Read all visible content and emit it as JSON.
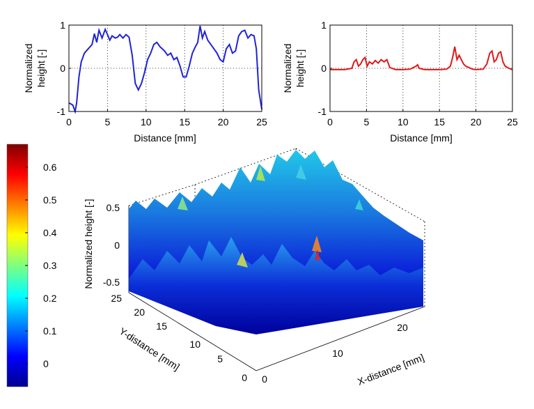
{
  "chart_data": [
    {
      "type": "line",
      "xlabel": "Distance [mm]",
      "ylabel": "Normalized height [-]",
      "xlim": [
        0,
        25
      ],
      "ylim": [
        -1,
        1
      ],
      "xticks": [
        "0",
        "5",
        "10",
        "15",
        "20",
        "25"
      ],
      "yticks": [
        "-1",
        "0",
        "1"
      ],
      "grid": true,
      "color": "#1f22d6",
      "series": [
        {
          "x": [
            0,
            0.5,
            0.8,
            1,
            1.3,
            1.6,
            2,
            2.5,
            3,
            3.3,
            3.6,
            3.9,
            4.3,
            4.7,
            5,
            5.3,
            5.6,
            6,
            6.3,
            6.6,
            7,
            7.4,
            7.8,
            8.2,
            8.6,
            9,
            9.4,
            9.8,
            10.2,
            10.6,
            11,
            11.4,
            11.8,
            12.1,
            12.4,
            12.8,
            13.2,
            13.6,
            14,
            14.4,
            14.8,
            15.2,
            15.6,
            16,
            16.4,
            16.7,
            17,
            17.3,
            17.6,
            18,
            18.4,
            18.8,
            19.2,
            19.6,
            20,
            20.4,
            20.8,
            21.2,
            21.6,
            22,
            22.4,
            22.8,
            23.2,
            23.6,
            24,
            24.3,
            24.6,
            25
          ],
          "y": [
            -0.8,
            -0.85,
            -1,
            -0.8,
            -0.2,
            0.15,
            0.35,
            0.45,
            0.55,
            0.8,
            0.6,
            0.88,
            0.7,
            0.9,
            0.78,
            0.65,
            0.75,
            0.7,
            0.72,
            0.78,
            0.7,
            0.78,
            0.72,
            0.3,
            -0.35,
            -0.5,
            -0.35,
            -0.1,
            0.2,
            0.35,
            0.55,
            0.6,
            0.5,
            0.45,
            0.4,
            0.3,
            0.35,
            0.2,
            0.25,
            0.05,
            -0.2,
            -0.2,
            0.05,
            0.35,
            0.5,
            0.6,
            0.98,
            0.7,
            0.85,
            0.65,
            0.55,
            0.45,
            0.35,
            0.2,
            0.15,
            0.45,
            0.55,
            0.35,
            0.4,
            0.75,
            0.85,
            0.88,
            0.7,
            0.78,
            0.75,
            0.45,
            -0.5,
            -0.95
          ]
        }
      ]
    },
    {
      "type": "line",
      "xlabel": "Distance [mm]",
      "ylabel": "Normalized height [-]",
      "xlim": [
        0,
        25
      ],
      "ylim": [
        -1,
        1
      ],
      "xticks": [
        "0",
        "5",
        "10",
        "15",
        "20",
        "25"
      ],
      "yticks": [
        "-1",
        "0",
        "1"
      ],
      "grid": true,
      "color": "#e01818",
      "series": [
        {
          "x": [
            0,
            1,
            2,
            3,
            3.3,
            3.6,
            3.9,
            4.2,
            4.5,
            4.8,
            5.1,
            5.4,
            5.8,
            6.2,
            6.6,
            7,
            7.4,
            7.8,
            8.2,
            9,
            10,
            11,
            11.8,
            12,
            12.2,
            13,
            14,
            15,
            16,
            16.5,
            16.8,
            17.1,
            17.4,
            17.7,
            18,
            18.3,
            18.6,
            19,
            19.5,
            20,
            21,
            21.5,
            21.9,
            22.2,
            22.5,
            22.8,
            23.1,
            23.4,
            23.7,
            24,
            24.5,
            25
          ],
          "y": [
            -0.03,
            -0.03,
            -0.03,
            0,
            0.15,
            0.2,
            0.05,
            0.1,
            0.2,
            0.25,
            0.05,
            0.15,
            0.1,
            0.18,
            0.12,
            0.2,
            0.15,
            0.2,
            0.02,
            -0.03,
            -0.03,
            -0.02,
            0.05,
            0.08,
            0,
            -0.03,
            -0.03,
            -0.03,
            -0.02,
            0.05,
            0.25,
            0.5,
            0.2,
            0.3,
            0.2,
            0.1,
            0.05,
            0.02,
            -0.02,
            -0.03,
            -0.02,
            0.1,
            0.35,
            0.4,
            0.15,
            0.2,
            0.35,
            0.38,
            0.15,
            0.05,
            0,
            -0.03
          ]
        }
      ]
    },
    {
      "type": "surface",
      "xlabel": "X-distance [mm]",
      "ylabel": "Y-distance [mm]",
      "zlabel": "Normalized height [-]",
      "xticks": [
        "0",
        "10",
        "20"
      ],
      "yticks": [
        "0",
        "5",
        "10",
        "15",
        "20",
        "25"
      ],
      "zticks": [
        "-0.5",
        "0",
        "0.5"
      ],
      "zlim": [
        -0.5,
        0.5
      ],
      "colorbar": {
        "ticks": [
          "0",
          "0.1",
          "0.2",
          "0.3",
          "0.4",
          "0.5",
          "0.6"
        ],
        "range": [
          -0.07,
          0.67
        ],
        "colormap": "jet"
      }
    }
  ]
}
